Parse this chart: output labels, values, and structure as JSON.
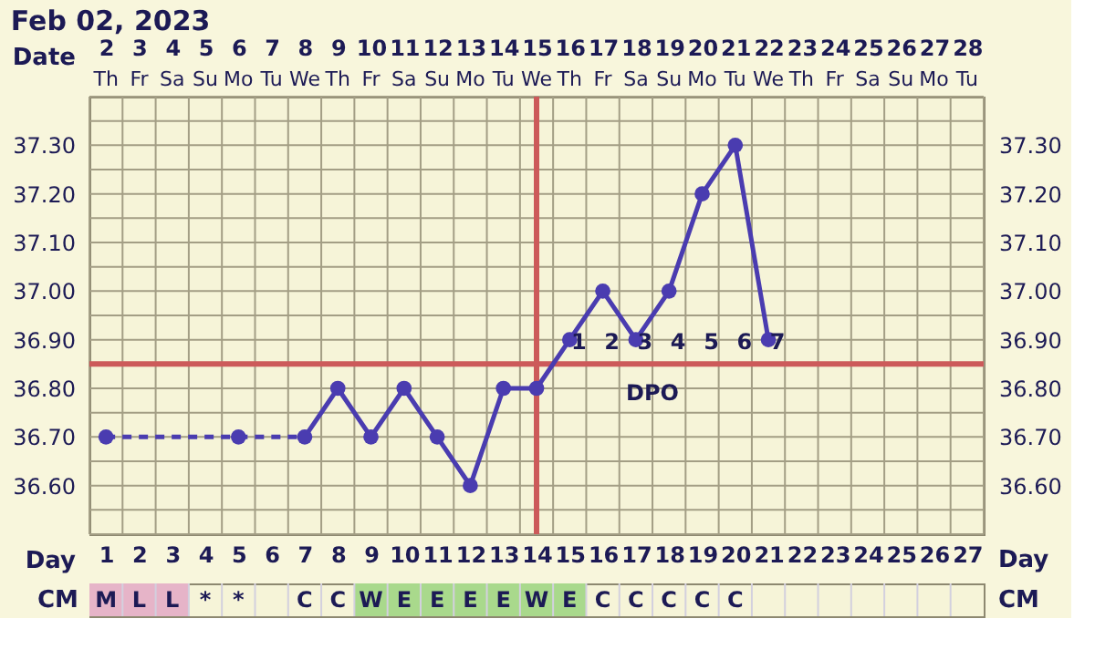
{
  "chart_data": [
    {
      "type": "line",
      "title": "Feb 02, 2023",
      "xlabel": "Day",
      "x2label": "Date",
      "x": [
        1,
        2,
        3,
        4,
        5,
        6,
        7,
        8,
        9,
        10,
        11,
        12,
        13,
        14,
        15,
        16,
        17,
        18,
        19,
        20,
        21
      ],
      "series": [
        {
          "color": "#4a3cb0",
          "values": [
            36.7,
            null,
            null,
            null,
            36.7,
            null,
            36.7,
            36.8,
            36.7,
            36.8,
            36.7,
            36.6,
            36.8,
            36.8,
            36.9,
            37.0,
            36.9,
            37.0,
            37.2,
            37.3,
            36.9
          ]
        }
      ],
      "marker": "circle",
      "line_style": "solid",
      "xlim": [
        0.5,
        27.5
      ],
      "xticks": [
        1,
        2,
        3,
        4,
        5,
        6,
        7,
        8,
        9,
        10,
        11,
        12,
        13,
        14,
        15,
        16,
        17,
        18,
        19,
        20,
        21,
        22,
        23,
        24,
        25,
        26,
        27
      ],
      "x2lim": [
        1.5,
        28.5
      ],
      "x2ticks": [
        2,
        3,
        4,
        5,
        6,
        7,
        8,
        9,
        10,
        11,
        12,
        13,
        14,
        15,
        16,
        17,
        18,
        19,
        20,
        21,
        22,
        23,
        24,
        25,
        26,
        27,
        28
      ],
      "ylim": [
        36.5,
        37.4
      ],
      "yticks": [
        {
          "value": 36.6,
          "label": "36.60"
        },
        {
          "value": 36.7,
          "label": "36.70"
        },
        {
          "value": 36.8,
          "label": "36.80"
        },
        {
          "value": 36.9,
          "label": "36.90"
        },
        {
          "value": 37.0,
          "label": "37.00"
        },
        {
          "value": 37.1,
          "label": "37.10"
        },
        {
          "value": 37.2,
          "label": "37.20"
        },
        {
          "value": 37.3,
          "label": "37.30"
        }
      ],
      "y2lim": [
        36.5,
        37.4
      ],
      "y2ticks": [
        {
          "value": 36.6,
          "label": "36.60"
        },
        {
          "value": 36.7,
          "label": "36.70"
        },
        {
          "value": 36.8,
          "label": "36.80"
        },
        {
          "value": 36.9,
          "label": "36.90"
        },
        {
          "value": 37.0,
          "label": "37.00"
        },
        {
          "value": 37.1,
          "label": "37.10"
        },
        {
          "value": 37.2,
          "label": "37.20"
        },
        {
          "value": 37.3,
          "label": "37.30"
        }
      ],
      "grid": true,
      "ref_lines": [
        {
          "axis": "y",
          "value": 36.85,
          "color": "#cc5a5a"
        },
        {
          "axis": "x",
          "value": 14,
          "color": "#cc5a5a"
        }
      ],
      "annotations": [
        "Th",
        "Fr",
        "Sa",
        "Su",
        "Mo",
        "Tu",
        "We",
        "Th",
        "Fr",
        "Sa",
        "Su",
        "Mo",
        "Tu",
        "We",
        "Th",
        "Fr",
        "Sa",
        "Su",
        "Mo",
        "Tu",
        "We",
        "Th",
        "Fr",
        "Sa",
        "Su",
        "Mo",
        "Tu",
        {
          "text": "1",
          "x": 15,
          "y": 36.85
        },
        {
          "text": "2",
          "x": 16,
          "y": 36.85
        },
        {
          "text": "3",
          "x": 17,
          "y": 36.85
        },
        {
          "text": "4",
          "x": 18,
          "y": 36.85
        },
        {
          "text": "5",
          "x": 19,
          "y": 36.85
        },
        {
          "text": "6",
          "x": 20,
          "y": 36.85
        },
        {
          "text": "7",
          "x": 21,
          "y": 36.85
        },
        {
          "text": "DPO",
          "x": 17.5,
          "y": 36.85
        }
      ]
    },
    {
      "type": "other",
      "ylabel": "CM",
      "y2label": "CM",
      "categories": [
        "M",
        "L",
        "L",
        "*",
        "*",
        null,
        "C",
        "C",
        "W",
        "E",
        "E",
        "E",
        "E",
        "W",
        "E",
        "C",
        "C",
        "C",
        "C",
        "C",
        null,
        null,
        null,
        null,
        null,
        null,
        null
      ],
      "colors": [
        "#e6b4c8",
        "#e6b4c8",
        "#e6b4c8",
        null,
        null,
        null,
        null,
        null,
        "#a9d98c",
        "#a9d98c",
        "#a9d98c",
        "#a9d98c",
        "#a9d98c",
        "#a9d98c",
        "#a9d98c",
        null,
        null,
        null,
        null,
        null,
        null,
        null,
        null,
        null,
        null,
        null,
        null
      ]
    }
  ]
}
